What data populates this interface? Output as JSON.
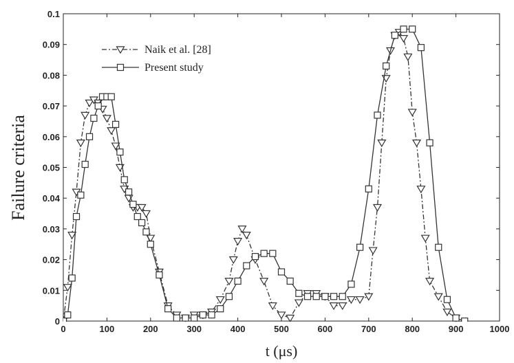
{
  "chart_data": {
    "type": "line",
    "xlabel": "t (μs)",
    "ylabel": "Failure criteria",
    "xlim": [
      0,
      1000
    ],
    "ylim": [
      0,
      0.1
    ],
    "x_ticks": [
      0,
      100,
      200,
      300,
      400,
      500,
      600,
      700,
      800,
      900,
      1000
    ],
    "y_ticks": [
      0,
      0.01,
      0.02,
      0.03,
      0.04,
      0.05,
      0.06,
      0.07,
      0.08,
      0.09,
      0.1
    ],
    "x_tick_labels": [
      "0",
      "100",
      "200",
      "300",
      "400",
      "500",
      "600",
      "700",
      "800",
      "900",
      "1000"
    ],
    "y_tick_labels": [
      "0",
      "0.01",
      "0.02",
      "0.03",
      "0.04",
      "0.05",
      "0.06",
      "0.07",
      "0.08",
      "0.09",
      "0.1"
    ],
    "grid": false,
    "legend_position": "top-left",
    "series": [
      {
        "name": "Naik et al. [28]",
        "marker": "triangle-down",
        "line_style": "dash-dot",
        "color": "#333333",
        "x": [
          0,
          10,
          20,
          30,
          40,
          50,
          60,
          70,
          80,
          90,
          100,
          110,
          120,
          130,
          140,
          150,
          160,
          170,
          180,
          190,
          200,
          220,
          240,
          260,
          280,
          300,
          320,
          340,
          360,
          380,
          390,
          400,
          410,
          420,
          440,
          460,
          480,
          500,
          520,
          540,
          560,
          580,
          600,
          620,
          640,
          660,
          680,
          700,
          710,
          720,
          730,
          740,
          750,
          760,
          770,
          780,
          790,
          800,
          810,
          820,
          830,
          840,
          860,
          880,
          900
        ],
        "y": [
          0,
          0.011,
          0.028,
          0.042,
          0.058,
          0.067,
          0.071,
          0.072,
          0.071,
          0.069,
          0.066,
          0.062,
          0.057,
          0.05,
          0.043,
          0.04,
          0.037,
          0.037,
          0.037,
          0.035,
          0.027,
          0.016,
          0.005,
          0.002,
          0.001,
          0.002,
          0.002,
          0.003,
          0.007,
          0.013,
          0.02,
          0.026,
          0.03,
          0.028,
          0.02,
          0.013,
          0.005,
          0.002,
          0.001,
          0.006,
          0.009,
          0.009,
          0.008,
          0.005,
          0.005,
          0.007,
          0.007,
          0.008,
          0.023,
          0.037,
          0.058,
          0.079,
          0.088,
          0.093,
          0.094,
          0.092,
          0.086,
          0.068,
          0.058,
          0.043,
          0.027,
          0.013,
          0.008,
          0.003,
          0.001
        ]
      },
      {
        "name": "Present study",
        "marker": "square",
        "line_style": "solid",
        "color": "#333333",
        "x": [
          0,
          10,
          20,
          30,
          40,
          50,
          60,
          70,
          80,
          90,
          100,
          110,
          120,
          130,
          140,
          150,
          160,
          170,
          180,
          190,
          200,
          220,
          240,
          260,
          280,
          300,
          320,
          340,
          360,
          380,
          400,
          420,
          440,
          460,
          480,
          500,
          520,
          540,
          560,
          580,
          600,
          620,
          640,
          660,
          680,
          700,
          720,
          740,
          760,
          780,
          800,
          820,
          840,
          860,
          880,
          900,
          920
        ],
        "y": [
          0,
          0.002,
          0.014,
          0.034,
          0.041,
          0.051,
          0.06,
          0.066,
          0.07,
          0.073,
          0.073,
          0.073,
          0.064,
          0.055,
          0.046,
          0.042,
          0.038,
          0.034,
          0.032,
          0.029,
          0.025,
          0.015,
          0.004,
          0.001,
          0.001,
          0.001,
          0.002,
          0.002,
          0.004,
          0.008,
          0.013,
          0.018,
          0.021,
          0.022,
          0.022,
          0.016,
          0.013,
          0.009,
          0.008,
          0.008,
          0.008,
          0.008,
          0.008,
          0.012,
          0.024,
          0.043,
          0.067,
          0.083,
          0.093,
          0.095,
          0.095,
          0.089,
          0.058,
          0.024,
          0.007,
          0.001,
          0
        ]
      }
    ]
  }
}
